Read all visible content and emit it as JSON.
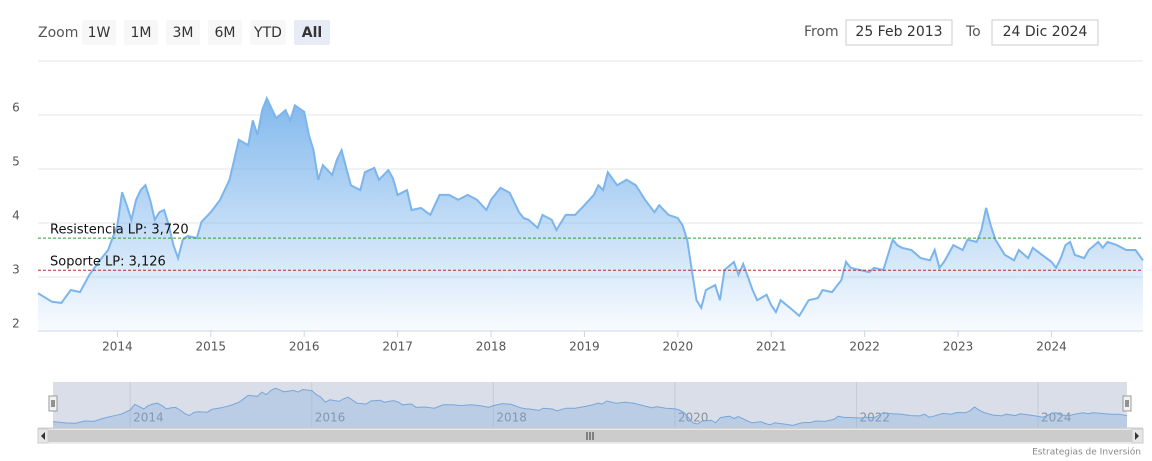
{
  "ui": {
    "zoom_label": "Zoom",
    "zoom_buttons": [
      {
        "label": "1W",
        "active": false
      },
      {
        "label": "1M",
        "active": false
      },
      {
        "label": "3M",
        "active": false
      },
      {
        "label": "6M",
        "active": false
      },
      {
        "label": "YTD",
        "active": false
      },
      {
        "label": "All",
        "active": true
      }
    ],
    "from_label": "From",
    "from_date": "25 Feb 2013",
    "to_label": "To",
    "to_date": "24 Dic 2024"
  },
  "credit": "Estrategias de Inversión",
  "chart_data": {
    "type": "area",
    "color": "#7cb5ec",
    "grid": true,
    "x": [
      2013.15,
      2013.3,
      2013.4,
      2013.5,
      2013.6,
      2013.7,
      2013.8,
      2013.9,
      2014.0,
      2014.05,
      2014.1,
      2014.15,
      2014.2,
      2014.25,
      2014.3,
      2014.35,
      2014.4,
      2014.45,
      2014.5,
      2014.55,
      2014.6,
      2014.65,
      2014.7,
      2014.75,
      2014.85,
      2014.9,
      2015.0,
      2015.1,
      2015.2,
      2015.25,
      2015.3,
      2015.4,
      2015.45,
      2015.5,
      2015.55,
      2015.6,
      2015.7,
      2015.8,
      2015.85,
      2015.9,
      2016.0,
      2016.05,
      2016.1,
      2016.15,
      2016.2,
      2016.3,
      2016.35,
      2016.4,
      2016.45,
      2016.5,
      2016.6,
      2016.65,
      2016.75,
      2016.8,
      2016.9,
      2016.95,
      2017.0,
      2017.1,
      2017.15,
      2017.25,
      2017.35,
      2017.45,
      2017.55,
      2017.65,
      2017.75,
      2017.85,
      2017.95,
      2018.0,
      2018.1,
      2018.2,
      2018.3,
      2018.35,
      2018.4,
      2018.5,
      2018.55,
      2018.65,
      2018.7,
      2018.8,
      2018.9,
      2019.0,
      2019.1,
      2019.15,
      2019.2,
      2019.25,
      2019.35,
      2019.45,
      2019.55,
      2019.65,
      2019.75,
      2019.8,
      2019.9,
      2020.0,
      2020.05,
      2020.1,
      2020.15,
      2020.2,
      2020.25,
      2020.3,
      2020.4,
      2020.45,
      2020.5,
      2020.6,
      2020.65,
      2020.7,
      2020.8,
      2020.85,
      2020.95,
      2021.0,
      2021.05,
      2021.1,
      2021.2,
      2021.3,
      2021.4,
      2021.5,
      2021.55,
      2021.65,
      2021.75,
      2021.8,
      2021.85,
      2021.95,
      2022.05,
      2022.1,
      2022.2,
      2022.25,
      2022.3,
      2022.35,
      2022.4,
      2022.5,
      2022.6,
      2022.7,
      2022.75,
      2022.8,
      2022.85,
      2022.95,
      2023.05,
      2023.1,
      2023.2,
      2023.25,
      2023.3,
      2023.35,
      2023.4,
      2023.5,
      2023.6,
      2023.65,
      2023.75,
      2023.8,
      2023.9,
      2024.0,
      2024.05,
      2024.1,
      2024.15,
      2024.2,
      2024.25,
      2024.35,
      2024.4,
      2024.5,
      2024.55,
      2024.6,
      2024.7,
      2024.8,
      2024.9,
      2024.98
    ],
    "values": [
      2.7,
      2.54,
      2.52,
      2.76,
      2.72,
      3.04,
      3.28,
      3.5,
      3.96,
      4.57,
      4.33,
      4.06,
      4.43,
      4.61,
      4.7,
      4.43,
      4.06,
      4.2,
      4.24,
      3.96,
      3.59,
      3.35,
      3.69,
      3.76,
      3.72,
      4.02,
      4.2,
      4.43,
      4.8,
      5.17,
      5.54,
      5.44,
      5.9,
      5.63,
      6.09,
      6.31,
      5.94,
      6.09,
      5.9,
      6.18,
      6.06,
      5.63,
      5.35,
      4.8,
      5.07,
      4.89,
      5.17,
      5.35,
      5.02,
      4.7,
      4.61,
      4.94,
      5.02,
      4.8,
      4.98,
      4.83,
      4.52,
      4.61,
      4.24,
      4.28,
      4.15,
      4.52,
      4.52,
      4.43,
      4.52,
      4.43,
      4.24,
      4.43,
      4.65,
      4.56,
      4.2,
      4.09,
      4.06,
      3.91,
      4.15,
      4.06,
      3.87,
      4.15,
      4.15,
      4.33,
      4.52,
      4.7,
      4.61,
      4.94,
      4.7,
      4.8,
      4.7,
      4.43,
      4.2,
      4.33,
      4.15,
      4.09,
      3.96,
      3.69,
      3.13,
      2.57,
      2.43,
      2.76,
      2.85,
      2.57,
      3.13,
      3.28,
      3.04,
      3.24,
      2.76,
      2.57,
      2.67,
      2.48,
      2.35,
      2.57,
      2.43,
      2.28,
      2.57,
      2.61,
      2.76,
      2.72,
      2.94,
      3.28,
      3.17,
      3.13,
      3.09,
      3.17,
      3.13,
      3.41,
      3.69,
      3.59,
      3.54,
      3.5,
      3.35,
      3.31,
      3.5,
      3.17,
      3.28,
      3.59,
      3.5,
      3.69,
      3.65,
      3.87,
      4.28,
      3.96,
      3.69,
      3.41,
      3.31,
      3.5,
      3.35,
      3.54,
      3.41,
      3.28,
      3.17,
      3.35,
      3.59,
      3.65,
      3.41,
      3.35,
      3.5,
      3.65,
      3.54,
      3.65,
      3.59,
      3.5,
      3.5,
      3.31
    ],
    "xlim": [
      2013.15,
      2024.98
    ],
    "xticks": [
      2014,
      2015,
      2016,
      2017,
      2018,
      2019,
      2020,
      2021,
      2022,
      2023,
      2024
    ],
    "ylim": [
      2,
      7
    ],
    "yticks": [
      2,
      3,
      4,
      5,
      6
    ],
    "plot_lines": [
      {
        "label": "Resistencia LP: 3,720",
        "value": 3.72,
        "color": "#2e9e2e"
      },
      {
        "label": "Soporte LP: 3,126",
        "value": 3.126,
        "color": "#c0282d"
      }
    ],
    "navigator_xticks": [
      2014,
      2016,
      2018,
      2020,
      2022,
      2024
    ]
  }
}
